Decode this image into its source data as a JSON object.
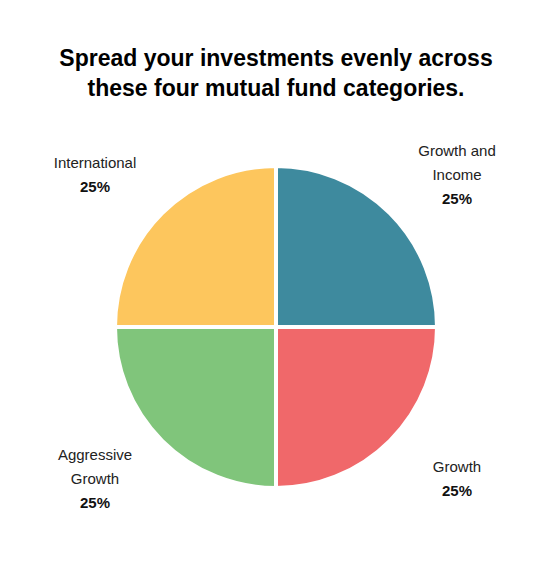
{
  "chart_data": {
    "type": "pie",
    "title": "Spread your investments evenly across these four mutual fund categories.",
    "categories": [
      "Growth and Income",
      "Growth",
      "Aggressive Growth",
      "International"
    ],
    "values": [
      25,
      25,
      25,
      25
    ],
    "value_labels": [
      "25%",
      "25%",
      "25%",
      "25%"
    ],
    "colors": [
      "#3e8a9e",
      "#f0686a",
      "#80c57b",
      "#fdc65d"
    ],
    "data_labels": true
  }
}
